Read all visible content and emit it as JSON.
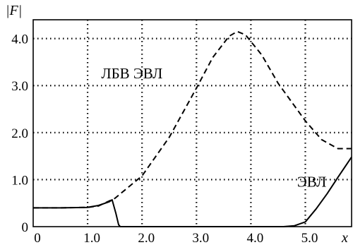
{
  "chart_data": {
    "type": "line",
    "ylabel": "|F|",
    "xlabel": "x",
    "xlim": [
      0,
      5.85
    ],
    "ylim": [
      0,
      4.4
    ],
    "grid": true,
    "grid_style": "dotted",
    "x_ticks": [
      0,
      1.0,
      2.0,
      3.0,
      4.0,
      5.0
    ],
    "x_tick_labels": [
      "0",
      "1.0",
      "2.0",
      "3.0",
      "4.0",
      "5.0"
    ],
    "y_ticks": [
      0,
      1.0,
      2.0,
      3.0,
      4.0
    ],
    "y_tick_labels": [
      "0",
      "1.0",
      "2.0",
      "3.0",
      "4.0"
    ],
    "series": [
      {
        "name": "ЛБВ ЭВЛ",
        "style": "dashed",
        "color": "#000000",
        "x": [
          0,
          0.5,
          1.0,
          1.2,
          1.5,
          2.0,
          2.5,
          3.0,
          3.3,
          3.6,
          3.75,
          3.9,
          4.2,
          4.5,
          5.0,
          5.3,
          5.6,
          5.85
        ],
        "y": [
          0.4,
          0.4,
          0.41,
          0.44,
          0.6,
          1.08,
          1.9,
          2.95,
          3.6,
          4.05,
          4.15,
          4.08,
          3.65,
          3.05,
          2.25,
          1.85,
          1.66,
          1.66
        ]
      },
      {
        "name": "ЭВЛ",
        "style": "solid",
        "color": "#000000",
        "x": [
          0,
          0.5,
          1.0,
          1.2,
          1.4,
          1.45,
          1.52,
          1.57,
          1.6,
          1.9,
          4.6,
          4.8,
          5.0,
          5.2,
          5.4,
          5.6,
          5.85
        ],
        "y": [
          0.4,
          0.4,
          0.41,
          0.45,
          0.53,
          0.57,
          0.28,
          0.04,
          0,
          0,
          0,
          0.02,
          0.1,
          0.38,
          0.7,
          1.05,
          1.48
        ]
      }
    ],
    "annotations": [
      {
        "text": "ЛБВ ЭВЛ",
        "x": 1.25,
        "y": 3.15
      },
      {
        "text": "ЭВЛ",
        "x": 4.85,
        "y": 0.85
      }
    ]
  }
}
